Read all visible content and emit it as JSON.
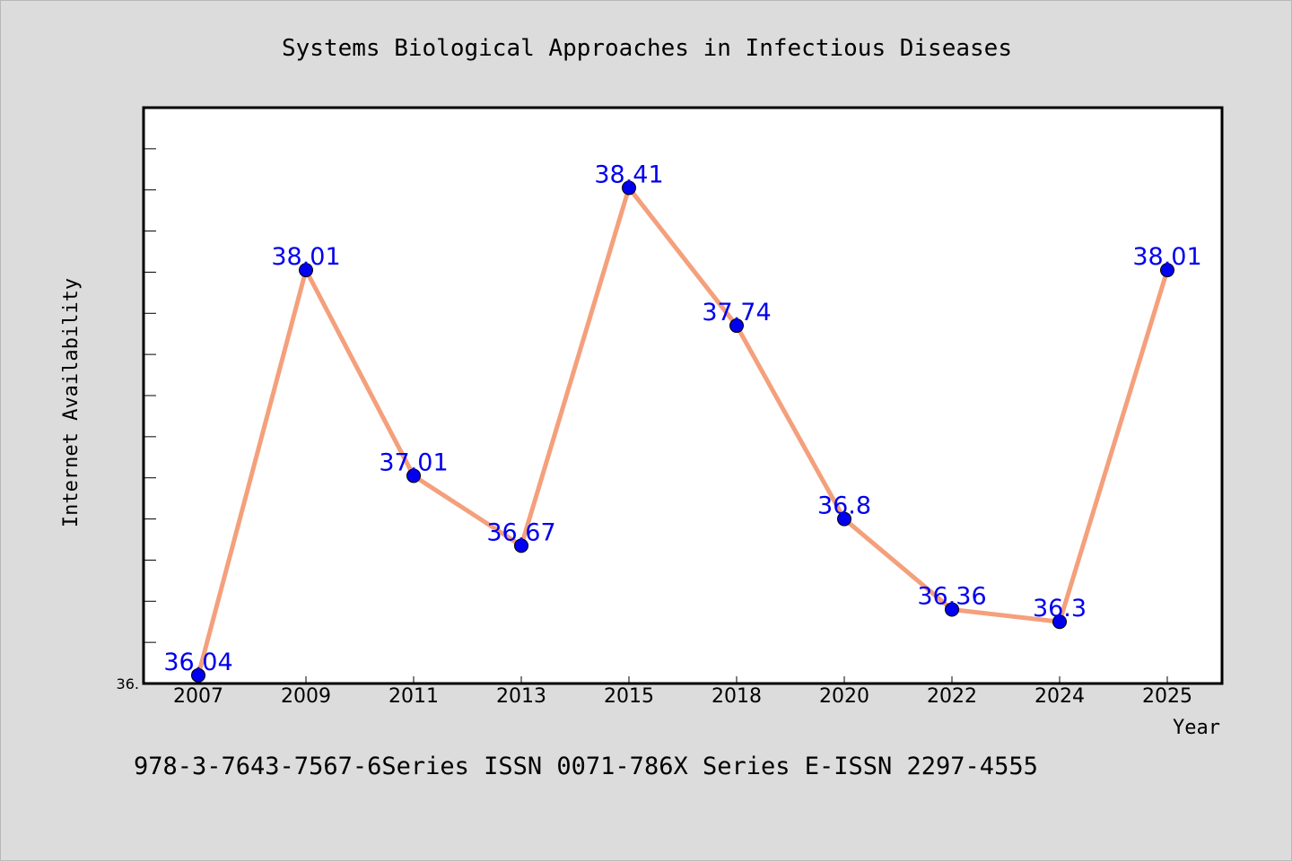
{
  "chart_data": {
    "type": "line",
    "title": "Systems Biological Approaches in Infectious Diseases",
    "xlabel": "Year",
    "ylabel": "Internet Availability",
    "categories": [
      "2007",
      "2009",
      "2011",
      "2013",
      "2015",
      "2018",
      "2020",
      "2022",
      "2024",
      "2025"
    ],
    "series": [
      {
        "values": [
          36.04,
          38.01,
          37.01,
          36.67,
          38.41,
          37.74,
          36.8,
          36.36,
          36.3,
          38.01
        ],
        "labels": [
          "36.04",
          "38.01",
          "37.01",
          "36.67",
          "38.41",
          "37.74",
          "36.8",
          "36.36",
          "36.3",
          "38.01"
        ]
      }
    ],
    "y_tick_label": "36.",
    "ylim": [
      36.0,
      38.8
    ],
    "y_minor_step": 0.2,
    "grid": false,
    "line_color": "#f4a07c",
    "marker_color": "#0000ee",
    "label_color": "#0000ee"
  },
  "footer_text": "978-3-7643-7567-6Series ISSN 0071-786X Series E-ISSN 2297-4555"
}
